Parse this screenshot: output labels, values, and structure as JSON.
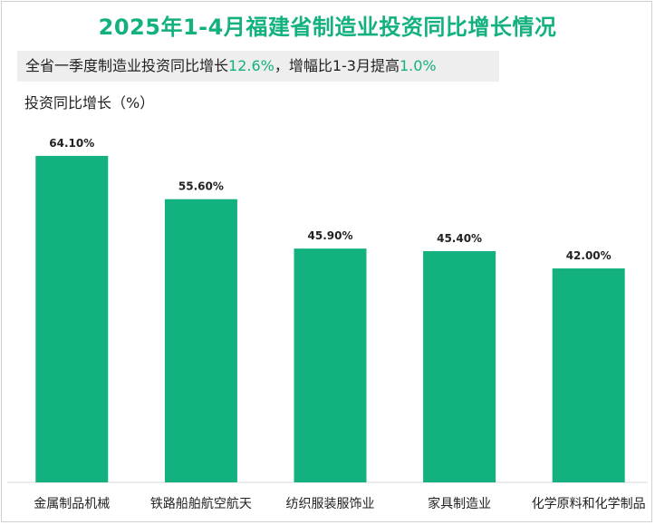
{
  "title": "2025年1-4月福建省制造业投资同比增长情况",
  "summary": {
    "part1": "全省一季度制造业投资同比增长",
    "value1": "12.6%",
    "part2": "，增幅比1-3月提高",
    "value2": "1.0%"
  },
  "colors": {
    "accent": "#13b17f",
    "bar": "#13b17f",
    "summary_bg": "#eeeeee"
  },
  "chart_data": {
    "type": "bar",
    "title": "2025年1-4月福建省制造业投资同比增长情况",
    "ylabel": "投资同比增长（%）",
    "xlabel": "",
    "categories": [
      "金属制品机械",
      "铁路船舶航空航天",
      "纺织服装服饰业",
      "家具制造业",
      "化学原料和化学制品"
    ],
    "values": [
      64.1,
      55.6,
      45.9,
      45.4,
      42.0
    ],
    "data_labels": [
      "64.10%",
      "55.60%",
      "45.90%",
      "45.40%",
      "42.00%"
    ],
    "ylim": [
      0,
      68
    ],
    "grid": false,
    "legend": "none"
  }
}
